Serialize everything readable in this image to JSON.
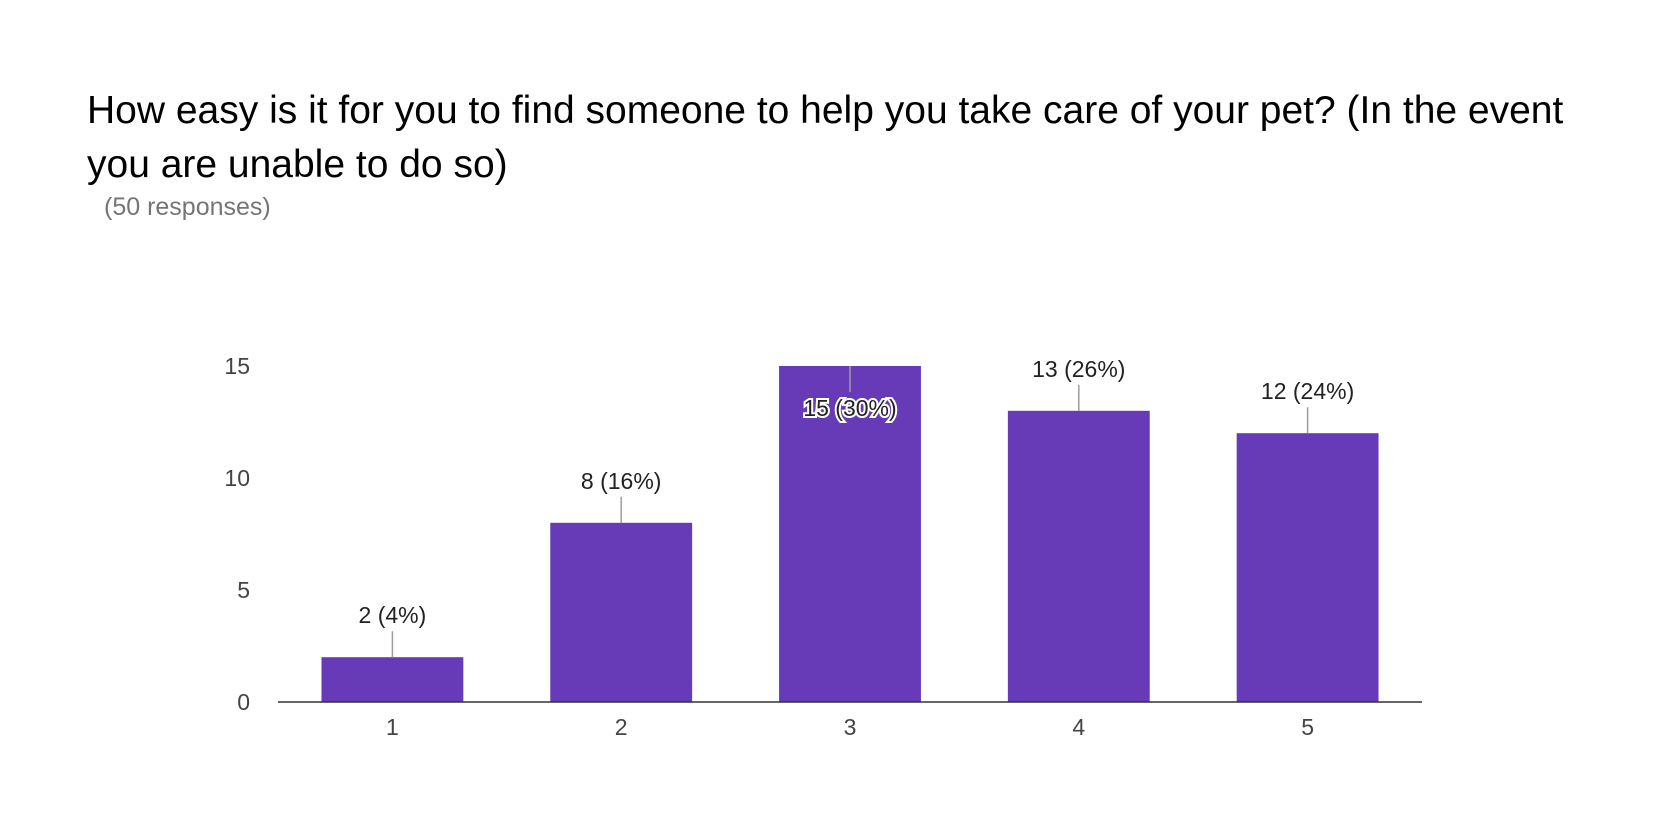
{
  "header": {
    "title": "How easy is it for you to find someone to help you take care of your pet? (In the event you are unable to do so)",
    "subtitle": "(50 responses)"
  },
  "colors": {
    "bar": "#673AB7",
    "axis": "#333333",
    "leader": "#9E9E9E"
  },
  "chart_data": {
    "type": "bar",
    "title": "How easy is it for you to find someone to help you take care of your pet? (In the event you are unable to do so)",
    "xlabel": "",
    "ylabel": "",
    "categories": [
      "1",
      "2",
      "3",
      "4",
      "5"
    ],
    "values": [
      2,
      8,
      15,
      13,
      12
    ],
    "data_labels": [
      "2 (4%)",
      "8 (16%)",
      "15 (30%)",
      "13 (26%)",
      "12 (24%)"
    ],
    "yticks": [
      "0",
      "5",
      "10",
      "15"
    ],
    "ylim": [
      0,
      15
    ],
    "grid": false,
    "legend": "none"
  }
}
